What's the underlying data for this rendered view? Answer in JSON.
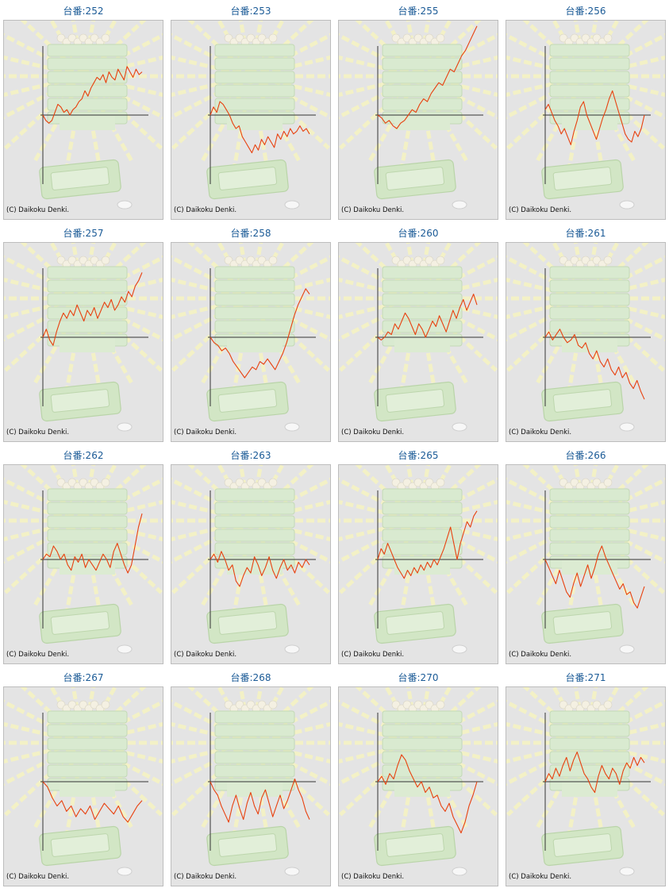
{
  "footer_label": "(C) Daikoku Denki.",
  "colors": {
    "line": "#e8410f",
    "axis": "#333333",
    "frame_bg": "#e4e4e4",
    "title": "#1a5a96"
  },
  "chart_data": [
    {
      "type": "line",
      "title": "台番:252",
      "values": [
        0,
        -2,
        -3,
        -2,
        1,
        4,
        3,
        1,
        2,
        0,
        2,
        3,
        5,
        6,
        9,
        7,
        10,
        12,
        14,
        13,
        15,
        12,
        16,
        14,
        13,
        17,
        15,
        13,
        18,
        16,
        14,
        17,
        15,
        16
      ]
    },
    {
      "type": "line",
      "title": "台番:253",
      "values": [
        0,
        3,
        1,
        5,
        4,
        2,
        0,
        -3,
        -5,
        -4,
        -8,
        -10,
        -12,
        -14,
        -11,
        -13,
        -9,
        -11,
        -8,
        -10,
        -12,
        -7,
        -9,
        -6,
        -8,
        -5,
        -7,
        -6,
        -4,
        -6,
        -5,
        -7
      ]
    },
    {
      "type": "line",
      "title": "台番:255",
      "values": [
        0,
        -1,
        -3,
        -2,
        -4,
        -5,
        -3,
        -2,
        0,
        2,
        1,
        4,
        6,
        5,
        8,
        10,
        12,
        11,
        14,
        17,
        16,
        19,
        22,
        24,
        27,
        30,
        33
      ]
    },
    {
      "type": "line",
      "title": "台番:256",
      "values": [
        2,
        4,
        1,
        -2,
        -4,
        -7,
        -5,
        -8,
        -11,
        -6,
        -2,
        3,
        5,
        0,
        -3,
        -6,
        -9,
        -5,
        -1,
        2,
        6,
        9,
        5,
        1,
        -3,
        -7,
        -9,
        -10,
        -6,
        -8,
        -5,
        0
      ]
    },
    {
      "type": "line",
      "title": "台番:257",
      "values": [
        0,
        3,
        -1,
        -3,
        2,
        6,
        9,
        7,
        10,
        8,
        12,
        9,
        6,
        10,
        8,
        11,
        7,
        10,
        13,
        11,
        14,
        10,
        12,
        15,
        13,
        17,
        15,
        19,
        21,
        24
      ]
    },
    {
      "type": "line",
      "title": "台番:258",
      "values": [
        0,
        -2,
        -3,
        -5,
        -4,
        -6,
        -9,
        -11,
        -13,
        -15,
        -13,
        -11,
        -12,
        -9,
        -10,
        -8,
        -10,
        -12,
        -9,
        -6,
        -2,
        3,
        8,
        12,
        15,
        18,
        16
      ]
    },
    {
      "type": "line",
      "title": "台番:260",
      "values": [
        0,
        -1,
        0,
        2,
        1,
        5,
        3,
        6,
        9,
        7,
        4,
        1,
        5,
        3,
        0,
        3,
        6,
        4,
        8,
        5,
        2,
        6,
        10,
        7,
        11,
        14,
        10,
        13,
        16,
        12
      ]
    },
    {
      "type": "line",
      "title": "台番:261",
      "values": [
        0,
        2,
        -1,
        1,
        3,
        0,
        -2,
        -1,
        1,
        -3,
        -4,
        -2,
        -6,
        -8,
        -5,
        -9,
        -11,
        -8,
        -12,
        -14,
        -11,
        -15,
        -13,
        -17,
        -19,
        -16,
        -20,
        -23
      ]
    },
    {
      "type": "line",
      "title": "台番:262",
      "values": [
        0,
        2,
        1,
        5,
        3,
        0,
        2,
        -2,
        -4,
        1,
        -1,
        2,
        -3,
        0,
        -2,
        -4,
        -1,
        2,
        0,
        -3,
        3,
        6,
        2,
        -2,
        -5,
        -2,
        5,
        12,
        17
      ]
    },
    {
      "type": "line",
      "title": "台番:263",
      "values": [
        0,
        2,
        -1,
        3,
        0,
        -4,
        -2,
        -8,
        -10,
        -6,
        -3,
        -5,
        1,
        -2,
        -6,
        -3,
        1,
        -4,
        -7,
        -3,
        0,
        -4,
        -2,
        -5,
        -1,
        -3,
        0,
        -2
      ]
    },
    {
      "type": "line",
      "title": "台番:265",
      "values": [
        0,
        4,
        2,
        6,
        3,
        0,
        -3,
        -5,
        -7,
        -4,
        -6,
        -3,
        -5,
        -2,
        -4,
        -1,
        -3,
        0,
        -2,
        1,
        4,
        8,
        12,
        6,
        0,
        6,
        10,
        14,
        12,
        16,
        18
      ]
    },
    {
      "type": "line",
      "title": "台番:266",
      "values": [
        0,
        -3,
        -6,
        -9,
        -4,
        -8,
        -12,
        -14,
        -9,
        -5,
        -10,
        -6,
        -2,
        -7,
        -3,
        2,
        5,
        1,
        -2,
        -5,
        -8,
        -11,
        -9,
        -13,
        -12,
        -16,
        -18,
        -14,
        -10
      ]
    },
    {
      "type": "line",
      "title": "台番:267",
      "values": [
        0,
        -2,
        -6,
        -9,
        -7,
        -11,
        -9,
        -13,
        -10,
        -12,
        -9,
        -14,
        -11,
        -8,
        -10,
        -12,
        -9,
        -13,
        -15,
        -12,
        -9,
        -7
      ]
    },
    {
      "type": "line",
      "title": "台番:268",
      "values": [
        0,
        -3,
        -5,
        -9,
        -12,
        -15,
        -9,
        -5,
        -10,
        -14,
        -8,
        -4,
        -9,
        -12,
        -6,
        -3,
        -8,
        -13,
        -9,
        -5,
        -10,
        -7,
        -3,
        1,
        -3,
        -6,
        -11,
        -14
      ]
    },
    {
      "type": "line",
      "title": "台番:270",
      "values": [
        0,
        2,
        -1,
        3,
        1,
        6,
        10,
        8,
        4,
        1,
        -2,
        0,
        -4,
        -2,
        -6,
        -5,
        -9,
        -11,
        -8,
        -13,
        -16,
        -19,
        -15,
        -9,
        -5,
        0
      ]
    },
    {
      "type": "line",
      "title": "台番:271",
      "values": [
        0,
        3,
        1,
        5,
        2,
        6,
        9,
        4,
        8,
        11,
        7,
        3,
        1,
        -2,
        -4,
        2,
        6,
        3,
        1,
        5,
        3,
        -1,
        4,
        7,
        5,
        9,
        6,
        9,
        7
      ]
    }
  ]
}
